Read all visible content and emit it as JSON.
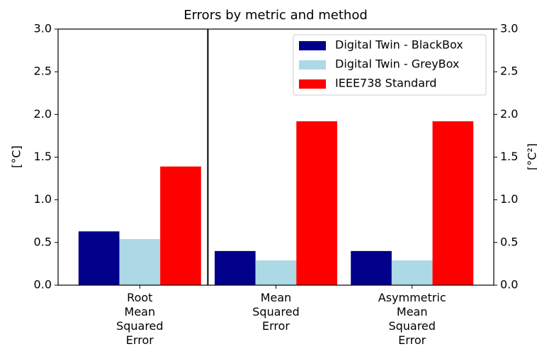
{
  "chart_data": {
    "type": "bar",
    "title": "Errors by metric and method",
    "categories": [
      "Root Mean Squared Error",
      "Mean Squared Error",
      "Asymmetric Mean Squared Error"
    ],
    "series": [
      {
        "name": "Digital Twin - BlackBox",
        "color": "#00008b",
        "values": [
          0.63,
          0.4,
          0.4
        ]
      },
      {
        "name": "Digital Twin - GreyBox",
        "color": "#add8e6",
        "values": [
          0.54,
          0.29,
          0.29
        ]
      },
      {
        "name": "IEEE738 Standard",
        "color": "#ff0000",
        "values": [
          1.39,
          1.92,
          1.92
        ]
      }
    ],
    "xlim": [
      -0.6,
      2.6
    ],
    "vlines": [
      0.5
    ],
    "ylabel": "[°C]",
    "y2label": "[°C²]",
    "ylim": [
      0,
      3
    ],
    "yticks": [
      {
        "value": 0,
        "label": "0.0"
      },
      0.5,
      {
        "value": 1,
        "label": "1.0"
      },
      1.5,
      {
        "value": 2,
        "label": "2.0"
      },
      2.5,
      {
        "value": 3,
        "label": "3.0"
      }
    ],
    "y2lim": [
      0,
      3
    ],
    "y2ticks": [
      {
        "value": 0,
        "label": "0.0"
      },
      0.5,
      {
        "value": 1,
        "label": "1.0"
      },
      1.5,
      {
        "value": 2,
        "label": "2.0"
      },
      2.5,
      {
        "value": 3,
        "label": "3.0"
      }
    ],
    "legend": "upper right"
  }
}
